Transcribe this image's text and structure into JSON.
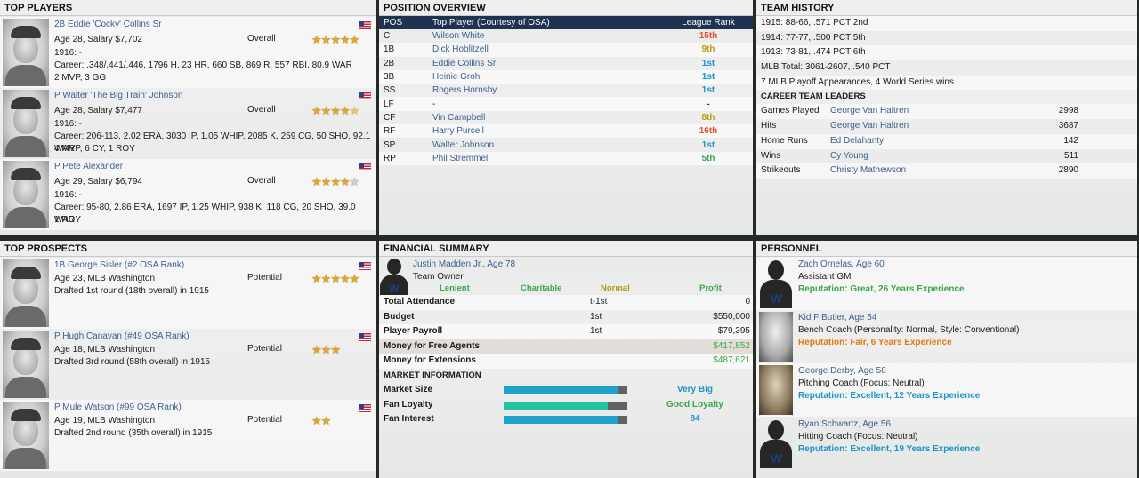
{
  "top_players": {
    "title": "TOP PLAYERS",
    "overall_label": "Overall",
    "players": [
      {
        "name": "2B Eddie 'Cocky' Collins Sr",
        "age_salary": "Age 28, Salary $7,702",
        "season": "1916: -",
        "career": "Career: .348/.441/.446, 1796 H, 23 HR, 660 SB, 869 R, 557 RBI, 80.9 WAR",
        "awards": "2 MVP, 3 GG",
        "stars": 5.0
      },
      {
        "name": "P Walter 'The Big Train' Johnson",
        "age_salary": "Age 28, Salary $7,477",
        "season": "1916: -",
        "career": "Career: 206-113, 2.02 ERA, 3030 IP, 1.05 WHIP, 2085 K, 259 CG, 50 SHO, 92.1 WAR",
        "awards": "4 MVP, 6 CY, 1 ROY",
        "stars": 4.5
      },
      {
        "name": "P Pete Alexander",
        "age_salary": "Age 29, Salary $6,794",
        "season": "1916: -",
        "career": "Career: 95-80, 2.86 ERA, 1697 IP, 1.25 WHIP, 938 K, 118 CG, 20 SHO, 39.0 WAR",
        "awards": "1 ROY",
        "stars": 4.0
      }
    ]
  },
  "top_prospects": {
    "title": "TOP PROSPECTS",
    "potential_label": "Potential",
    "prospects": [
      {
        "name": "1B George Sisler (#2 OSA Rank)",
        "age_team": "Age 23, MLB Washington",
        "draft": "Drafted 1st round (18th overall) in 1915",
        "stars": 5
      },
      {
        "name": "P Hugh Canavan (#49 OSA Rank)",
        "age_team": "Age 18, MLB Washington",
        "draft": "Drafted 3rd round (58th overall) in 1915",
        "stars": 3
      },
      {
        "name": "P Mule Watson (#99 OSA Rank)",
        "age_team": "Age 19, MLB Washington",
        "draft": "Drafted 2nd round (35th overall) in 1915",
        "stars": 2
      }
    ]
  },
  "position_overview": {
    "title": "POSITION OVERVIEW",
    "headers": {
      "pos": "POS",
      "player": "Top Player (Courtesy of OSA)",
      "rank": "League Rank"
    },
    "rows": [
      {
        "pos": "C",
        "player": "Wilson White",
        "rank": "15th",
        "rank_color": "#e0522a"
      },
      {
        "pos": "1B",
        "player": "Dick Hoblitzell",
        "rank": "9th",
        "rank_color": "#b69a0c"
      },
      {
        "pos": "2B",
        "player": "Eddie Collins Sr",
        "rank": "1st",
        "rank_color": "#1e95c6"
      },
      {
        "pos": "3B",
        "player": "Heinie Groh",
        "rank": "1st",
        "rank_color": "#1e95c6"
      },
      {
        "pos": "SS",
        "player": "Rogers Hornsby",
        "rank": "1st",
        "rank_color": "#1e95c6"
      },
      {
        "pos": "LF",
        "player": "-",
        "rank": "-",
        "rank_color": "#333333"
      },
      {
        "pos": "CF",
        "player": "Vin Campbell",
        "rank": "8th",
        "rank_color": "#b69a0c"
      },
      {
        "pos": "RF",
        "player": "Harry Purcell",
        "rank": "16th",
        "rank_color": "#e0522a"
      },
      {
        "pos": "SP",
        "player": "Walter Johnson",
        "rank": "1st",
        "rank_color": "#1e95c6"
      },
      {
        "pos": "RP",
        "player": "Phil Stremmel",
        "rank": "5th",
        "rank_color": "#3aa64a"
      }
    ]
  },
  "team_history": {
    "title": "TEAM HISTORY",
    "lines": [
      "1915: 88-66, .571 PCT 2nd",
      "1914: 77-77, .500 PCT 5th",
      "1913: 73-81, .474 PCT 6th",
      "MLB Total: 3061-2607, .540 PCT",
      "7 MLB Playoff Appearances, 4 World Series wins"
    ],
    "leaders_title": "CAREER TEAM LEADERS",
    "leaders": [
      {
        "category": "Games Played",
        "player": "George Van Haltren",
        "value": "2998"
      },
      {
        "category": "Hits",
        "player": "George Van Haltren",
        "value": "3687"
      },
      {
        "category": "Home Runs",
        "player": "Ed Delahanty",
        "value": "142"
      },
      {
        "category": "Wins",
        "player": "Cy Young",
        "value": "511"
      },
      {
        "category": "Strikeouts",
        "player": "Christy Mathewson",
        "value": "2890"
      }
    ]
  },
  "financial_summary": {
    "title": "FINANCIAL SUMMARY",
    "owner_name": "Justin Madden Jr., Age 78",
    "owner_role": "Team Owner",
    "scale": [
      {
        "label": "Lenient",
        "color": "#3aa64a"
      },
      {
        "label": "Charitable",
        "color": "#3aa64a"
      },
      {
        "label": "Normal",
        "color": "#b69a0c"
      },
      {
        "label": "Profit",
        "color": "#3aa64a"
      }
    ],
    "rows": [
      {
        "label": "Total Attendance",
        "rank": "t-1st",
        "value": "0",
        "value_color": "#1a1a1a"
      },
      {
        "label": "Budget",
        "rank": "1st",
        "value": "$550,000",
        "value_color": "#1a1a1a"
      },
      {
        "label": "Player Payroll",
        "rank": "1st",
        "value": "$79,395",
        "value_color": "#1a1a1a"
      },
      {
        "label": "Money for Free Agents",
        "rank": "",
        "value": "$417,852",
        "value_color": "#3aa64a"
      },
      {
        "label": "Money for Extensions",
        "rank": "",
        "value": "$487,621",
        "value_color": "#3aa64a"
      }
    ],
    "market_title": "MARKET INFORMATION",
    "market": [
      {
        "label": "Market Size",
        "fill": 0.93,
        "bar_color": "#1ea2c8",
        "text": "Very Big",
        "text_color": "#1e95c6"
      },
      {
        "label": "Fan Loyalty",
        "fill": 0.84,
        "bar_color": "#22c3a0",
        "text": "Good Loyalty",
        "text_color": "#3aa64a"
      },
      {
        "label": "Fan Interest",
        "fill": 0.93,
        "bar_color": "#1ea2c8",
        "text": "84",
        "text_color": "#1e95c6"
      }
    ]
  },
  "personnel": {
    "title": "PERSONNEL",
    "staff": [
      {
        "name": "Zach Ornelas, Age 60",
        "role": "Assistant GM",
        "reputation": "Reputation: Great, 26 Years Experience",
        "rep_color": "#3aa64a",
        "photo": "silhouette"
      },
      {
        "name": "Kid F Butler, Age 54",
        "role": "Bench Coach (Personality: Normal, Style: Conventional)",
        "reputation": "Reputation: Fair, 6 Years Experience",
        "rep_color": "#e07a12",
        "photo": "gray"
      },
      {
        "name": "George Derby, Age 58",
        "role": "Pitching Coach (Focus: Neutral)",
        "reputation": "Reputation: Excellent, 12 Years Experience",
        "rep_color": "#1e95c6",
        "photo": "sepia"
      },
      {
        "name": "Ryan Schwartz, Age 56",
        "role": "Hitting Coach (Focus: Neutral)",
        "reputation": "Reputation: Excellent, 19 Years Experience",
        "rep_color": "#1e95c6",
        "photo": "silhouette"
      }
    ]
  }
}
